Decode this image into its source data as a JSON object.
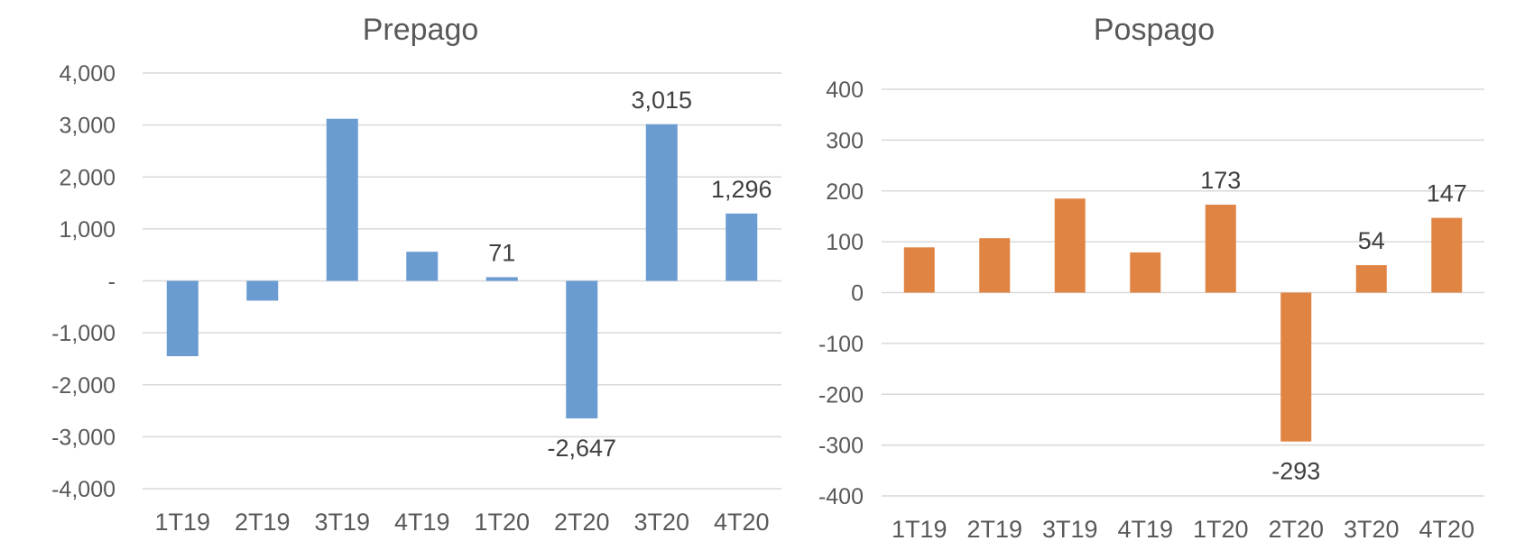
{
  "chart_data": [
    {
      "type": "bar",
      "title": "Prepago",
      "categories": [
        "1T19",
        "2T19",
        "3T19",
        "4T19",
        "1T20",
        "2T20",
        "3T20",
        "4T20"
      ],
      "values": [
        -1450,
        -380,
        3120,
        560,
        71,
        -2647,
        3015,
        1296
      ],
      "data_labels": [
        null,
        null,
        null,
        null,
        "71",
        "-2,647",
        "3,015",
        "1,296"
      ],
      "ylim": [
        -4000,
        4000
      ],
      "yticks": [
        {
          "value": 4000,
          "label": "4,000"
        },
        {
          "value": 3000,
          "label": "3,000"
        },
        {
          "value": 2000,
          "label": "2,000"
        },
        {
          "value": 1000,
          "label": "1,000"
        },
        {
          "value": 0,
          "label": "-"
        },
        {
          "value": -1000,
          "label": "-1,000"
        },
        {
          "value": -2000,
          "label": "-2,000"
        },
        {
          "value": -3000,
          "label": "-3,000"
        },
        {
          "value": -4000,
          "label": "-4,000"
        }
      ],
      "xlabel": "",
      "ylabel": "",
      "grid": true,
      "color": "#6a9bd1"
    },
    {
      "type": "bar",
      "title": "Pospago",
      "categories": [
        "1T19",
        "2T19",
        "3T19",
        "4T19",
        "1T20",
        "2T20",
        "3T20",
        "4T20"
      ],
      "values": [
        89,
        107,
        185,
        79,
        173,
        -293,
        54,
        147
      ],
      "data_labels": [
        null,
        null,
        null,
        null,
        "173",
        "-293",
        "54",
        "147"
      ],
      "ylim": [
        -400,
        400
      ],
      "yticks": [
        {
          "value": 400,
          "label": "400"
        },
        {
          "value": 300,
          "label": "300"
        },
        {
          "value": 200,
          "label": "200"
        },
        {
          "value": 100,
          "label": "100"
        },
        {
          "value": 0,
          "label": "0"
        },
        {
          "value": -100,
          "label": "-100"
        },
        {
          "value": -200,
          "label": "-200"
        },
        {
          "value": -300,
          "label": "-300"
        },
        {
          "value": -400,
          "label": "-400"
        }
      ],
      "xlabel": "",
      "ylabel": "",
      "grid": true,
      "color": "#e08443"
    }
  ]
}
